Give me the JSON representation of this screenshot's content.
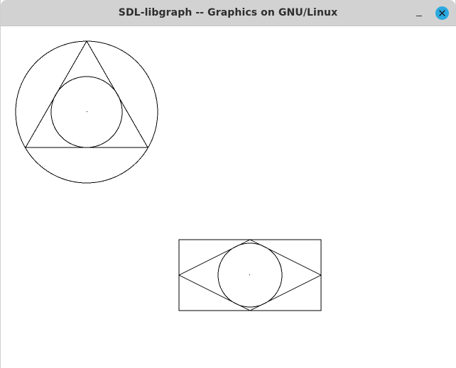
{
  "window": {
    "title": "SDL-libgraph -- Graphics on GNU/Linux",
    "controls": {
      "minimize_icon": "minimize-icon",
      "close_icon": "close-icon",
      "close_color": "#2aa9e0"
    }
  },
  "canvas": {
    "background": "#ffffff",
    "stroke_color": "#000000"
  }
}
